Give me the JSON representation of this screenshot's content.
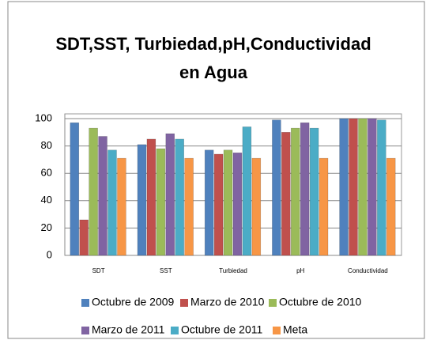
{
  "chart_data": {
    "type": "bar",
    "title": "SDT,SST, Turbiedad,pH,Conductividad en Agua",
    "categories": [
      "SDT",
      "SST",
      "Turbiedad",
      "pH",
      "Conductividad"
    ],
    "series": [
      {
        "name": "Octubre de 2009",
        "color": "#4f81bd",
        "values": [
          97,
          81,
          77,
          99,
          100
        ]
      },
      {
        "name": "Marzo de 2010",
        "color": "#c0504d",
        "values": [
          26,
          85,
          74,
          90,
          100
        ]
      },
      {
        "name": "Octubre de 2010",
        "color": "#9bbb59",
        "values": [
          93,
          78,
          77,
          93,
          100
        ]
      },
      {
        "name": "Marzo de 2011",
        "color": "#8064a2",
        "values": [
          87,
          89,
          75,
          97,
          100
        ]
      },
      {
        "name": "Octubre de 2011",
        "color": "#4bacc6",
        "values": [
          77,
          85,
          94,
          93,
          99
        ]
      },
      {
        "name": "Meta",
        "color": "#f79646",
        "values": [
          71,
          71,
          71,
          71,
          71
        ]
      }
    ],
    "ylim": [
      0,
      100
    ],
    "yticks": [
      0,
      20,
      40,
      60,
      80,
      100
    ],
    "grid": true
  }
}
